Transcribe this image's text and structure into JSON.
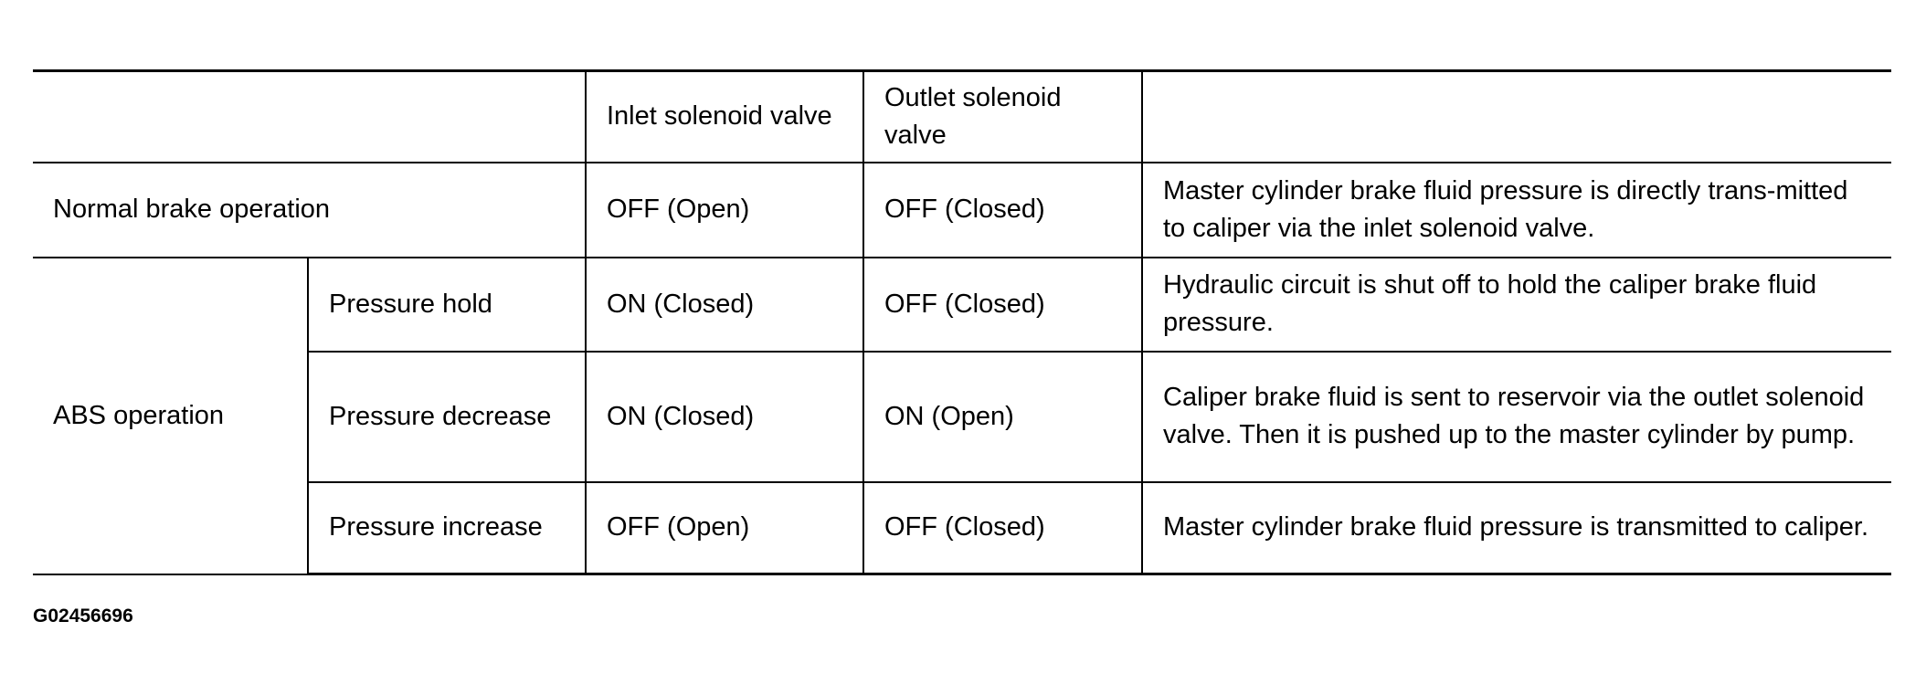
{
  "table": {
    "headers": {
      "inlet": "Inlet solenoid valve",
      "outlet": "Outlet solenoid valve"
    },
    "normal": {
      "label": "Normal brake operation",
      "inlet": "OFF (Open)",
      "outlet": "OFF (Closed)",
      "description": "Master cylinder brake fluid pressure is directly trans-mitted to caliper via the inlet solenoid valve."
    },
    "abs": {
      "label": "ABS operation",
      "rows": [
        {
          "mode": "Pressure hold",
          "inlet": "ON (Closed)",
          "outlet": "OFF (Closed)",
          "description": "Hydraulic circuit is shut off to hold the caliper brake fluid pressure."
        },
        {
          "mode": "Pressure decrease",
          "inlet": "ON (Closed)",
          "outlet": "ON (Open)",
          "description": "Caliper brake fluid is sent to reservoir via the outlet solenoid valve. Then it is pushed up to the master cylinder by pump."
        },
        {
          "mode": "Pressure increase",
          "inlet": "OFF (Open)",
          "outlet": "OFF (Closed)",
          "description": "Master cylinder brake fluid pressure is transmitted to caliper."
        }
      ]
    }
  },
  "caption": "G02456696"
}
